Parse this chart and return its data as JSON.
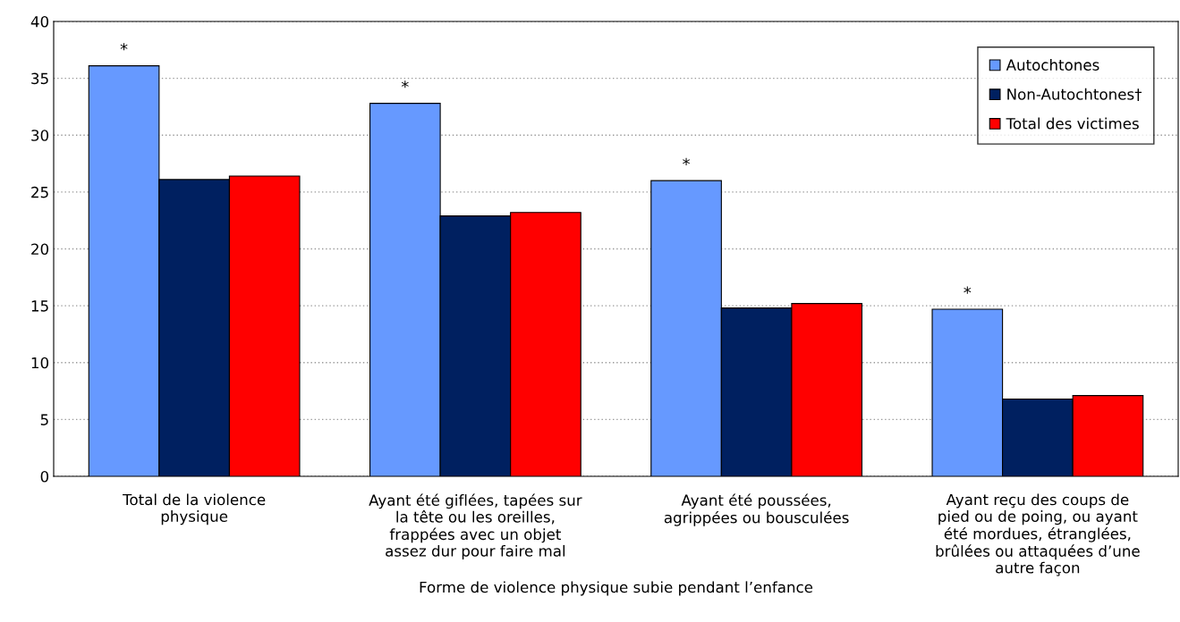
{
  "chart_data": {
    "type": "bar",
    "xlabel": "Forme de violence physique subie pendant l’enfance",
    "categories": [
      "Total de la violence\nphysique",
      "Ayant été giflées, tapées sur\nla tête ou les oreilles,\nfrappées avec un objet\nassez dur pour faire mal",
      "Ayant été poussées,\nagrippées ou bousculées",
      "Ayant reçu des coups de\npied ou de poing, ou ayant\nété mordues, étranglées,\nbrûlées ou attaquées d’une\nautre façon"
    ],
    "series": [
      {
        "name": "Autochtones",
        "color": "#6699ff",
        "values": [
          36.1,
          32.8,
          26.0,
          14.7
        ],
        "value_labels": [
          "*",
          "*",
          "*",
          "*"
        ]
      },
      {
        "name": "Non-Autochtones†",
        "color": "#002060",
        "values": [
          26.1,
          22.9,
          14.8,
          6.8
        ]
      },
      {
        "name": "Total des victimes",
        "color": "#ff0000",
        "values": [
          26.4,
          23.2,
          15.2,
          7.1
        ]
      }
    ],
    "ylim": [
      0,
      40
    ],
    "yticks": [
      0,
      5,
      10,
      15,
      20,
      25,
      30,
      35,
      40
    ],
    "grid": "y",
    "legend": "top right"
  }
}
